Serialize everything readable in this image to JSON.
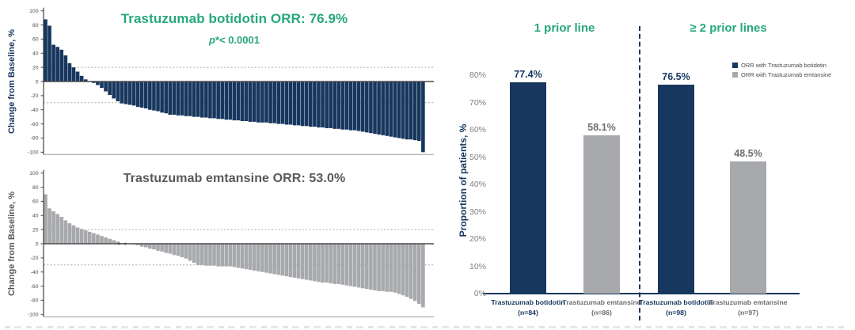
{
  "palette": {
    "navy": "#17375E",
    "gray": "#A7A9AC",
    "green": "#27A77D",
    "dark_gray_text": "#58595B",
    "mid_gray_text": "#6D6E71",
    "tick_gray": "#808285",
    "axis_dark": "#4A4A4C"
  },
  "chart_data": [
    {
      "type": "bar",
      "subtype": "waterfall",
      "title": "Trastuzumab botidotin ORR: 76.9%",
      "p_value_italic": "p",
      "p_value_rest": "*< 0.0001",
      "ylabel": "Change from Baseline, %",
      "ylim": [
        -100,
        100
      ],
      "yticks": [
        100,
        80,
        60,
        40,
        20,
        0,
        -20,
        -40,
        -60,
        -80,
        -100
      ],
      "reference_lines": [
        20,
        -30
      ],
      "grid": false,
      "bar_color": "#17375E",
      "title_color": "#27A77D",
      "ylabel_color": "#17375E",
      "values": [
        88,
        79,
        52,
        49,
        45,
        37,
        26,
        20,
        14,
        8,
        3,
        0,
        -2,
        -5,
        -9,
        -14,
        -19,
        -24,
        -28,
        -31,
        -32,
        -33,
        -34,
        -36,
        -37,
        -38,
        -40,
        -41,
        -42,
        -44,
        -45,
        -47,
        -47,
        -48,
        -48,
        -49,
        -49,
        -50,
        -50,
        -51,
        -51,
        -52,
        -52,
        -53,
        -53,
        -54,
        -54,
        -55,
        -55,
        -56,
        -56,
        -57,
        -57,
        -58,
        -58,
        -58,
        -59,
        -59,
        -60,
        -60,
        -61,
        -61,
        -62,
        -62,
        -63,
        -63,
        -64,
        -64,
        -65,
        -65,
        -66,
        -66,
        -67,
        -67,
        -68,
        -68,
        -69,
        -69,
        -70,
        -71,
        -72,
        -73,
        -74,
        -75,
        -76,
        -77,
        -78,
        -79,
        -80,
        -81,
        -82,
        -82,
        -83,
        -84,
        -100
      ]
    },
    {
      "type": "bar",
      "subtype": "waterfall",
      "title": "Trastuzumab emtansine ORR: 53.0%",
      "ylabel": "Change from Baseline, %",
      "ylim": [
        -100,
        100
      ],
      "yticks": [
        100,
        80,
        60,
        40,
        20,
        0,
        -20,
        -40,
        -60,
        -80,
        -100
      ],
      "reference_lines": [
        20,
        -30
      ],
      "grid": false,
      "bar_color": "#A7A9AC",
      "title_color": "#58595B",
      "ylabel_color": "#58595B",
      "zero_markers": [
        0.195,
        0.212
      ],
      "values": [
        70,
        50,
        46,
        42,
        38,
        33,
        29,
        26,
        23,
        21,
        19,
        17,
        15,
        13,
        11,
        9,
        7,
        5,
        3,
        1,
        0,
        0,
        -1,
        -2,
        -4,
        -5,
        -7,
        -8,
        -10,
        -11,
        -13,
        -14,
        -16,
        -17,
        -19,
        -21,
        -24,
        -27,
        -30,
        -30,
        -31,
        -31,
        -31,
        -32,
        -32,
        -32,
        -32,
        -33,
        -34,
        -35,
        -36,
        -37,
        -38,
        -39,
        -40,
        -41,
        -42,
        -43,
        -44,
        -45,
        -46,
        -47,
        -48,
        -49,
        -50,
        -51,
        -52,
        -53,
        -54,
        -55,
        -55,
        -56,
        -57,
        -57,
        -58,
        -59,
        -60,
        -61,
        -62,
        -63,
        -64,
        -65,
        -66,
        -67,
        -67,
        -68,
        -68,
        -69,
        -71,
        -73,
        -75,
        -78,
        -81,
        -85,
        -90
      ]
    },
    {
      "type": "bar",
      "subtype": "grouped",
      "ylabel": "Proportion of patients, %",
      "ylim": [
        0,
        80
      ],
      "yticks": [
        "0%",
        "10%",
        "20%",
        "30%",
        "40%",
        "50%",
        "60%",
        "70%",
        "80%"
      ],
      "grid": false,
      "title_color": "#27A77D",
      "legend_position": "top-right",
      "groups": [
        {
          "title": "1 prior line",
          "bars": [
            {
              "label": "Trastuzumab botidotin",
              "n": "(n=84)",
              "value": 77.4,
              "value_label": "77.4%",
              "color": "#17375E",
              "label_color": "#17375E"
            },
            {
              "label": "Trastuzumab emtansine",
              "n": "(n=86)",
              "value": 58.1,
              "value_label": "58.1%",
              "color": "#A7A9AC",
              "label_color": "#6D6E71"
            }
          ]
        },
        {
          "title": "≥ 2 prior lines",
          "bars": [
            {
              "label": "Trastuzumab botidotin",
              "n": "(n=98)",
              "value": 76.5,
              "value_label": "76.5%",
              "color": "#17375E",
              "label_color": "#17375E"
            },
            {
              "label": "Trastuzumab emtansine",
              "n": "(n=97)",
              "value": 48.5,
              "value_label": "48.5%",
              "color": "#A7A9AC",
              "label_color": "#6D6E71"
            }
          ]
        }
      ],
      "legend": [
        {
          "label": "ORR with Trastuzumab botidotin",
          "color": "#17375E"
        },
        {
          "label": "ORR with Trastuzumab emtansine",
          "color": "#A7A9AC"
        }
      ]
    }
  ]
}
